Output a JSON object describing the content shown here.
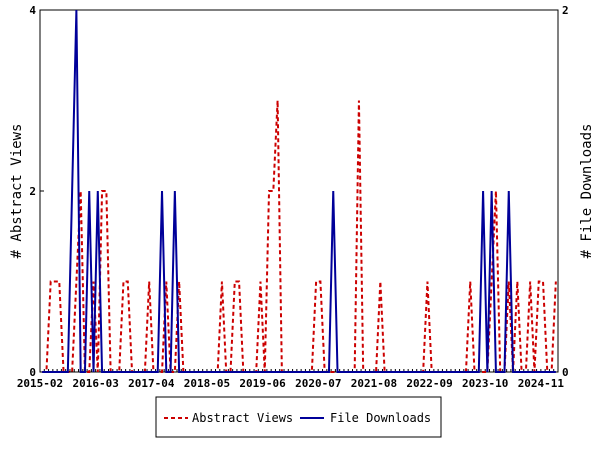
{
  "chart_data": {
    "type": "line",
    "title": "",
    "x_tick_labels": [
      "2015-02",
      "2016-03",
      "2017-04",
      "2018-05",
      "2019-06",
      "2020-07",
      "2021-08",
      "2022-09",
      "2023-10",
      "2024-11"
    ],
    "x_range": [
      "2015-02",
      "2025-05"
    ],
    "y_left": {
      "label": "# Abstract Views",
      "ticks": [
        "0",
        "2",
        "4"
      ],
      "range": [
        0,
        4
      ]
    },
    "y_right": {
      "label": "# File Downloads",
      "ticks": [
        "0",
        "2"
      ],
      "range": [
        0,
        2
      ]
    },
    "grid": false,
    "legend_position": "bottom",
    "series": [
      {
        "name": "Abstract Views",
        "axis": "left",
        "color": "#cc0000",
        "dash": "dashed",
        "values": [
          0,
          0,
          1,
          1,
          1,
          0,
          0,
          0,
          1,
          2,
          0,
          0,
          1,
          0,
          2,
          2,
          0,
          0,
          0,
          1,
          1,
          0,
          0,
          0,
          0,
          1,
          0,
          0,
          0,
          1,
          0,
          0,
          1,
          0,
          0,
          0,
          0,
          0,
          0,
          0,
          0,
          0,
          1,
          0,
          0,
          1,
          1,
          0,
          0,
          0,
          0,
          1,
          0,
          2,
          2,
          3,
          0,
          0,
          0,
          0,
          0,
          0,
          0,
          0,
          1,
          1,
          0,
          0,
          0,
          0,
          0,
          0,
          0,
          0,
          3,
          0,
          0,
          0,
          0,
          1,
          0,
          0,
          0,
          0,
          0,
          0,
          0,
          0,
          0,
          0,
          1,
          0,
          0,
          0,
          0,
          0,
          0,
          0,
          0,
          0,
          1,
          0,
          0,
          0,
          0,
          1,
          2,
          0,
          0,
          1,
          0,
          1,
          0,
          0,
          1,
          0,
          1,
          1,
          0,
          0,
          1
        ]
      },
      {
        "name": "File Downloads",
        "axis": "right",
        "color": "#000099",
        "dash": "solid",
        "values": [
          0,
          0,
          0,
          0,
          0,
          0,
          0,
          1,
          2,
          0,
          0,
          1,
          0,
          1,
          0,
          0,
          0,
          0,
          0,
          0,
          0,
          0,
          0,
          0,
          0,
          0,
          0,
          0,
          1,
          0,
          0,
          1,
          0,
          0,
          0,
          0,
          0,
          0,
          0,
          0,
          0,
          0,
          0,
          0,
          0,
          0,
          0,
          0,
          0,
          0,
          0,
          0,
          0,
          0,
          0,
          0,
          0,
          0,
          0,
          0,
          0,
          0,
          0,
          0,
          0,
          0,
          0,
          0,
          1,
          0,
          0,
          0,
          0,
          0,
          0,
          0,
          0,
          0,
          0,
          0,
          0,
          0,
          0,
          0,
          0,
          0,
          0,
          0,
          0,
          0,
          0,
          0,
          0,
          0,
          0,
          0,
          0,
          0,
          0,
          0,
          0,
          0,
          0,
          1,
          0,
          1,
          0,
          0,
          0,
          1,
          0,
          0,
          0,
          0,
          0,
          0,
          0,
          0,
          0,
          0,
          0
        ]
      }
    ]
  }
}
